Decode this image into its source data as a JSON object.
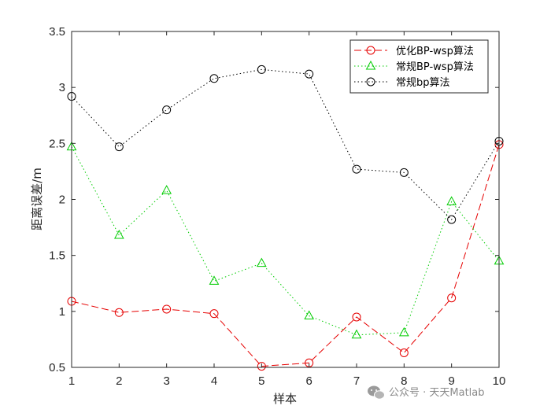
{
  "chart_data": {
    "type": "line",
    "title": "",
    "xlabel": "样本",
    "ylabel": "距离误差/m",
    "x": [
      1,
      2,
      3,
      4,
      5,
      6,
      7,
      8,
      9,
      10
    ],
    "xlim": [
      1,
      10
    ],
    "ylim": [
      0.5,
      3.5
    ],
    "xticks": [
      "1",
      "2",
      "3",
      "4",
      "5",
      "6",
      "7",
      "8",
      "9",
      "10"
    ],
    "yticks": [
      "0.5",
      "1",
      "1.5",
      "2",
      "2.5",
      "3",
      "3.5"
    ],
    "grid": false,
    "legend_position": "top-right",
    "series": [
      {
        "name": "优化BP-wsp算法",
        "values": [
          1.09,
          0.99,
          1.02,
          0.98,
          0.51,
          0.54,
          0.95,
          0.63,
          1.12,
          2.49
        ],
        "color": "#e60000",
        "line_style": "dashed",
        "marker": "circle"
      },
      {
        "name": "常规BP-wsp算法",
        "values": [
          2.47,
          1.68,
          2.08,
          1.27,
          1.43,
          0.96,
          0.79,
          0.81,
          1.98,
          1.45
        ],
        "color": "#00cc00",
        "line_style": "dotted",
        "marker": "triangle"
      },
      {
        "name": "常规bp算法",
        "values": [
          2.92,
          2.47,
          2.8,
          3.08,
          3.16,
          3.12,
          2.27,
          2.24,
          1.82,
          2.52
        ],
        "color": "#000000",
        "line_style": "dotted",
        "marker": "circle"
      }
    ]
  },
  "watermark": {
    "icon": "wechat-icon",
    "text": "公众号 · 天天Matlab"
  }
}
